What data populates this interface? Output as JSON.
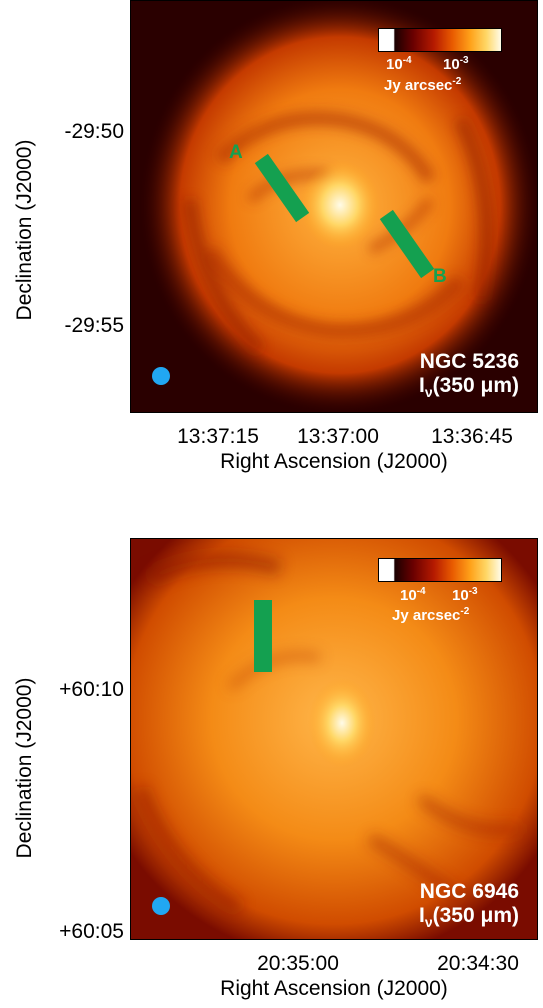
{
  "panels": [
    {
      "object": "NGC 5236",
      "quantity_prefix": "I",
      "quantity_sub": "ν",
      "quantity_suffix": "(350 μm)",
      "y_axis_label": "Declination (J2000)",
      "x_axis_label": "Right Ascension (J2000)",
      "y_ticks": [
        "-29:50",
        "-29:55"
      ],
      "x_ticks": [
        "13:37:15",
        "13:37:00",
        "13:36:45"
      ],
      "colorbar": {
        "tick1": "10",
        "tick1_exp": "-4",
        "tick2": "10",
        "tick2_exp": "-3",
        "unit": "Jy arcsec",
        "unit_exp": "-2"
      },
      "cut_labels": [
        "A",
        "B"
      ]
    },
    {
      "object": "NGC 6946",
      "quantity_prefix": "I",
      "quantity_sub": "ν",
      "quantity_suffix": "(350 μm)",
      "y_axis_label": "Declination (J2000)",
      "x_axis_label": "Right Ascension (J2000)",
      "y_ticks": [
        "+60:10",
        "+60:05"
      ],
      "x_ticks": [
        "20:35:00",
        "20:34:30"
      ],
      "colorbar": {
        "tick1": "10",
        "tick1_exp": "-4",
        "tick2": "10",
        "tick2_exp": "-3",
        "unit": "Jy arcsec",
        "unit_exp": "-2"
      },
      "cut_labels": []
    }
  ],
  "colors": {
    "cut_green": "#14a050",
    "beam_blue": "#21a7f2",
    "map_dark": "#3a0000",
    "map_peak": "#fffbe8"
  },
  "icons": [
    "beam-circle"
  ]
}
